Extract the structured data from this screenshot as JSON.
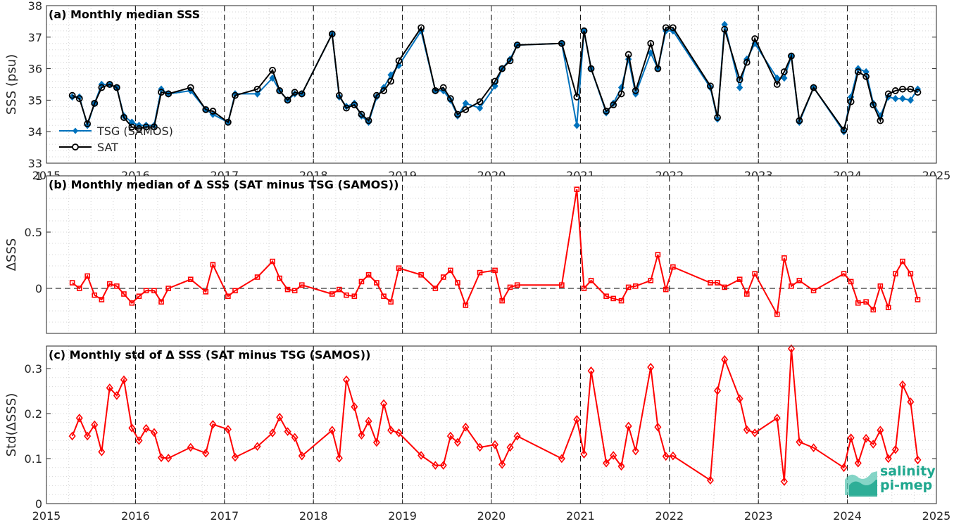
{
  "chart_data": [
    {
      "type": "line",
      "title": "(a) Monthly median SSS",
      "ylabel": "SSS (psu)",
      "ylim": [
        33,
        38
      ],
      "yticks": [
        33,
        34,
        35,
        36,
        37,
        38
      ],
      "xlim": [
        2015,
        2025
      ],
      "xticks": [
        2015,
        2016,
        2017,
        2018,
        2019,
        2020,
        2021,
        2022,
        2023,
        2024,
        2025
      ],
      "legend_position": "lower-left",
      "grid": "minor dotted",
      "series": [
        {
          "name": "TSG (SAMOS)",
          "color": "#0072bd",
          "marker": "filled-diamond",
          "x": [
            2015.29,
            2015.37,
            2015.46,
            2015.54,
            2015.62,
            2015.71,
            2015.79,
            2015.87,
            2015.96,
            2016.04,
            2016.12,
            2016.21,
            2016.29,
            2016.37,
            2016.62,
            2016.79,
            2016.87,
            2017.04,
            2017.12,
            2017.37,
            2017.54,
            2017.62,
            2017.71,
            2017.79,
            2017.87,
            2018.21,
            2018.29,
            2018.37,
            2018.46,
            2018.54,
            2018.62,
            2018.71,
            2018.79,
            2018.87,
            2018.96,
            2019.21,
            2019.37,
            2019.46,
            2019.54,
            2019.62,
            2019.71,
            2019.87,
            2020.04,
            2020.12,
            2020.21,
            2020.29,
            2020.79,
            2020.96,
            2021.04,
            2021.12,
            2021.29,
            2021.37,
            2021.46,
            2021.54,
            2021.62,
            2021.79,
            2021.87,
            2021.96,
            2022.04,
            2022.46,
            2022.54,
            2022.62,
            2022.79,
            2022.87,
            2022.96,
            2023.21,
            2023.29,
            2023.37,
            2023.46,
            2023.62,
            2023.96,
            2024.04,
            2024.12,
            2024.21,
            2024.29,
            2024.37,
            2024.46,
            2024.54,
            2024.62,
            2024.71,
            2024.79
          ],
          "values": [
            35.1,
            35.1,
            34.2,
            34.9,
            35.5,
            35.5,
            35.4,
            34.5,
            34.3,
            34.2,
            34.2,
            34.2,
            35.35,
            35.2,
            35.3,
            34.7,
            34.55,
            34.3,
            35.2,
            35.2,
            35.7,
            35.3,
            35.0,
            35.2,
            35.2,
            37.1,
            35.1,
            34.8,
            34.9,
            34.5,
            34.3,
            35.1,
            35.4,
            35.8,
            36.1,
            37.2,
            35.3,
            35.3,
            35.0,
            34.5,
            34.9,
            34.75,
            35.45,
            36.0,
            36.3,
            36.75,
            36.8,
            34.2,
            37.2,
            36.0,
            34.6,
            34.9,
            35.4,
            36.3,
            35.2,
            36.5,
            36.0,
            37.2,
            37.2,
            35.4,
            34.4,
            37.4,
            35.4,
            36.3,
            36.8,
            35.7,
            35.7,
            36.4,
            34.3,
            35.4,
            34.0,
            35.1,
            36.0,
            35.9,
            34.9,
            34.5,
            35.1,
            35.05,
            35.05,
            35.0,
            35.35
          ]
        },
        {
          "name": "SAT",
          "color": "#000000",
          "marker": "open-circle",
          "x": [
            2015.29,
            2015.37,
            2015.46,
            2015.54,
            2015.62,
            2015.71,
            2015.79,
            2015.87,
            2015.96,
            2016.04,
            2016.12,
            2016.21,
            2016.29,
            2016.37,
            2016.62,
            2016.79,
            2016.87,
            2017.04,
            2017.12,
            2017.37,
            2017.54,
            2017.62,
            2017.71,
            2017.79,
            2017.87,
            2018.21,
            2018.29,
            2018.37,
            2018.46,
            2018.54,
            2018.62,
            2018.71,
            2018.79,
            2018.87,
            2018.96,
            2019.21,
            2019.37,
            2019.46,
            2019.54,
            2019.62,
            2019.71,
            2019.87,
            2020.04,
            2020.12,
            2020.21,
            2020.29,
            2020.79,
            2020.96,
            2021.04,
            2021.12,
            2021.29,
            2021.37,
            2021.46,
            2021.54,
            2021.62,
            2021.79,
            2021.87,
            2021.96,
            2022.04,
            2022.46,
            2022.54,
            2022.62,
            2022.79,
            2022.87,
            2022.96,
            2023.21,
            2023.29,
            2023.37,
            2023.46,
            2023.62,
            2023.96,
            2024.04,
            2024.12,
            2024.21,
            2024.29,
            2024.37,
            2024.46,
            2024.54,
            2024.62,
            2024.71,
            2024.79
          ],
          "values": [
            35.15,
            35.05,
            34.25,
            34.9,
            35.4,
            35.5,
            35.4,
            34.45,
            34.15,
            34.1,
            34.15,
            34.15,
            35.25,
            35.2,
            35.4,
            34.7,
            34.65,
            34.3,
            35.15,
            35.35,
            35.95,
            35.3,
            35.0,
            35.25,
            35.2,
            37.1,
            35.15,
            34.75,
            34.85,
            34.55,
            34.35,
            35.15,
            35.3,
            35.6,
            36.25,
            37.3,
            35.3,
            35.4,
            35.05,
            34.55,
            34.7,
            34.95,
            35.6,
            36.0,
            36.25,
            36.75,
            36.8,
            35.1,
            37.2,
            36.0,
            34.65,
            34.85,
            35.2,
            36.45,
            35.3,
            36.8,
            36.0,
            37.3,
            37.3,
            35.45,
            34.45,
            37.25,
            35.65,
            36.2,
            36.95,
            35.5,
            35.9,
            36.4,
            34.35,
            35.4,
            34.05,
            34.95,
            35.9,
            35.75,
            34.85,
            34.35,
            35.2,
            35.3,
            35.35,
            35.35,
            35.25
          ]
        }
      ]
    },
    {
      "type": "line",
      "title": "(b) Monthly median of Δ SSS (SAT minus TSG (SAMOS))",
      "ylabel": "ΔSSS",
      "ylim": [
        -0.4,
        1
      ],
      "yticks": [
        0,
        0.5,
        1
      ],
      "xlim": [
        2015,
        2025
      ],
      "zero_line": "dashed",
      "series": [
        {
          "name": "",
          "color": "#ff0000",
          "marker": "open-square",
          "x": [
            2015.29,
            2015.37,
            2015.46,
            2015.54,
            2015.62,
            2015.71,
            2015.79,
            2015.87,
            2015.96,
            2016.04,
            2016.12,
            2016.21,
            2016.29,
            2016.37,
            2016.62,
            2016.79,
            2016.87,
            2017.04,
            2017.12,
            2017.37,
            2017.54,
            2017.62,
            2017.71,
            2017.79,
            2017.87,
            2018.21,
            2018.29,
            2018.37,
            2018.46,
            2018.54,
            2018.62,
            2018.71,
            2018.79,
            2018.87,
            2018.96,
            2019.21,
            2019.37,
            2019.46,
            2019.54,
            2019.62,
            2019.71,
            2019.87,
            2020.04,
            2020.12,
            2020.21,
            2020.29,
            2020.79,
            2020.96,
            2021.04,
            2021.12,
            2021.29,
            2021.37,
            2021.46,
            2021.54,
            2021.62,
            2021.79,
            2021.87,
            2021.96,
            2022.04,
            2022.46,
            2022.54,
            2022.62,
            2022.79,
            2022.87,
            2022.96,
            2023.21,
            2023.29,
            2023.37,
            2023.46,
            2023.62,
            2023.96,
            2024.04,
            2024.12,
            2024.21,
            2024.29,
            2024.37,
            2024.46,
            2024.54,
            2024.62,
            2024.71,
            2024.79
          ],
          "values": [
            0.05,
            0.0,
            0.11,
            -0.06,
            -0.1,
            0.04,
            0.02,
            -0.05,
            -0.13,
            -0.07,
            -0.02,
            -0.02,
            -0.12,
            0.0,
            0.08,
            -0.03,
            0.21,
            -0.07,
            -0.02,
            0.1,
            0.24,
            0.09,
            -0.01,
            -0.02,
            0.03,
            -0.05,
            -0.01,
            -0.06,
            -0.07,
            0.06,
            0.12,
            0.05,
            -0.07,
            -0.12,
            0.18,
            0.12,
            0.0,
            0.1,
            0.16,
            0.05,
            -0.15,
            0.14,
            0.16,
            -0.11,
            0.01,
            0.03,
            0.03,
            0.88,
            0.0,
            0.07,
            -0.07,
            -0.09,
            -0.11,
            0.01,
            0.02,
            0.07,
            0.3,
            -0.01,
            0.19,
            0.05,
            0.05,
            0.01,
            0.08,
            -0.05,
            0.13,
            -0.23,
            0.27,
            0.02,
            0.07,
            -0.02,
            0.13,
            0.06,
            -0.13,
            -0.12,
            -0.19,
            0.02,
            -0.17,
            0.13,
            0.24,
            0.13,
            -0.1
          ]
        }
      ]
    },
    {
      "type": "line",
      "title": "(c) Monthly std of Δ SSS (SAT minus TSG (SAMOS))",
      "ylabel": "Std(ΔSSS)",
      "ylim": [
        0,
        0.35
      ],
      "yticks": [
        0,
        0.1,
        0.2,
        0.3
      ],
      "xlim": [
        2015,
        2025
      ],
      "xticks": [
        2015,
        2016,
        2017,
        2018,
        2019,
        2020,
        2021,
        2022,
        2023,
        2024,
        2025
      ],
      "series": [
        {
          "name": "",
          "color": "#ff0000",
          "marker": "open-diamond",
          "x": [
            2015.29,
            2015.37,
            2015.46,
            2015.54,
            2015.62,
            2015.71,
            2015.79,
            2015.87,
            2015.96,
            2016.04,
            2016.12,
            2016.21,
            2016.29,
            2016.37,
            2016.62,
            2016.79,
            2016.87,
            2017.04,
            2017.12,
            2017.37,
            2017.54,
            2017.62,
            2017.71,
            2017.79,
            2017.87,
            2018.21,
            2018.29,
            2018.37,
            2018.46,
            2018.54,
            2018.62,
            2018.71,
            2018.79,
            2018.87,
            2018.96,
            2019.21,
            2019.37,
            2019.46,
            2019.54,
            2019.62,
            2019.71,
            2019.87,
            2020.04,
            2020.12,
            2020.21,
            2020.29,
            2020.79,
            2020.96,
            2021.04,
            2021.12,
            2021.29,
            2021.37,
            2021.46,
            2021.54,
            2021.62,
            2021.79,
            2021.87,
            2021.96,
            2022.04,
            2022.46,
            2022.54,
            2022.62,
            2022.79,
            2022.87,
            2022.96,
            2023.21,
            2023.29,
            2023.37,
            2023.46,
            2023.62,
            2023.96,
            2024.04,
            2024.12,
            2024.21,
            2024.29,
            2024.37,
            2024.46,
            2024.54,
            2024.62,
            2024.71,
            2024.79
          ],
          "values": [
            0.15,
            0.19,
            0.15,
            0.175,
            0.115,
            0.257,
            0.24,
            0.275,
            0.168,
            0.14,
            0.167,
            0.158,
            0.102,
            0.101,
            0.125,
            0.112,
            0.176,
            0.165,
            0.103,
            0.127,
            0.157,
            0.192,
            0.16,
            0.147,
            0.106,
            0.163,
            0.101,
            0.275,
            0.215,
            0.152,
            0.183,
            0.136,
            0.222,
            0.163,
            0.157,
            0.107,
            0.085,
            0.085,
            0.15,
            0.136,
            0.17,
            0.125,
            0.131,
            0.087,
            0.125,
            0.15,
            0.1,
            0.187,
            0.11,
            0.295,
            0.09,
            0.107,
            0.083,
            0.172,
            0.117,
            0.303,
            0.17,
            0.105,
            0.106,
            0.052,
            0.251,
            0.32,
            0.233,
            0.164,
            0.157,
            0.19,
            0.049,
            0.344,
            0.137,
            0.124,
            0.08,
            0.146,
            0.09,
            0.145,
            0.132,
            0.163,
            0.1,
            0.12,
            0.264,
            0.226,
            0.097
          ]
        }
      ]
    }
  ],
  "logo": {
    "line1": "salinity",
    "line2": "pi-mep",
    "color": "#1ea78e"
  }
}
